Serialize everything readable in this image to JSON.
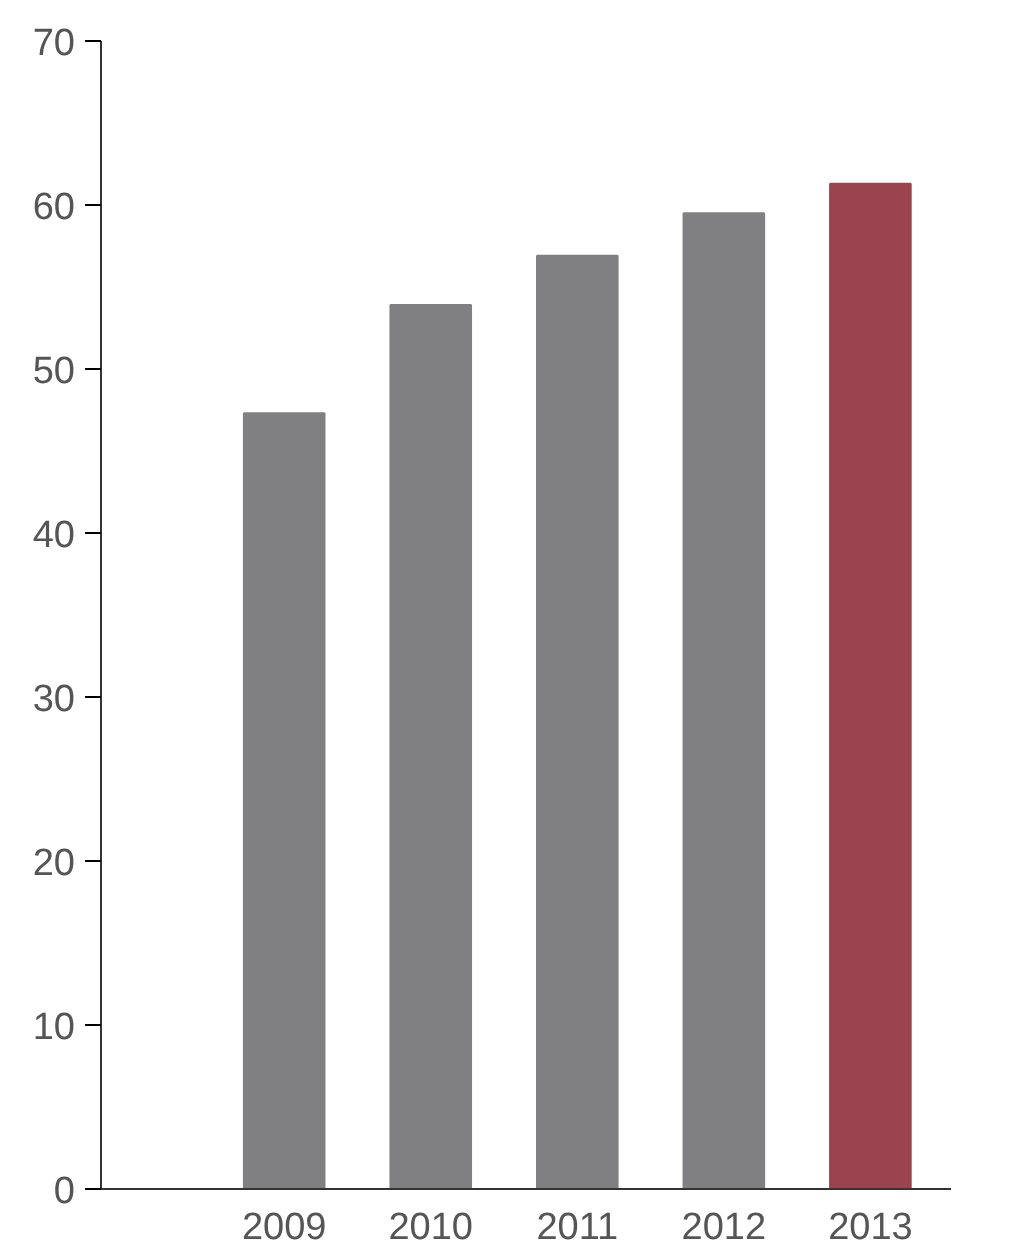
{
  "chart_data": {
    "type": "bar",
    "categories": [
      "2009",
      "2010",
      "2011",
      "2012",
      "2013"
    ],
    "values": [
      47.3,
      53.9,
      56.9,
      59.5,
      61.3
    ],
    "colors": [
      "#808083",
      "#808083",
      "#808083",
      "#808083",
      "#9a4450"
    ],
    "ylim": [
      0,
      70
    ],
    "yticks": [
      0,
      10,
      20,
      30,
      40,
      50,
      60,
      70
    ],
    "grid": false
  }
}
